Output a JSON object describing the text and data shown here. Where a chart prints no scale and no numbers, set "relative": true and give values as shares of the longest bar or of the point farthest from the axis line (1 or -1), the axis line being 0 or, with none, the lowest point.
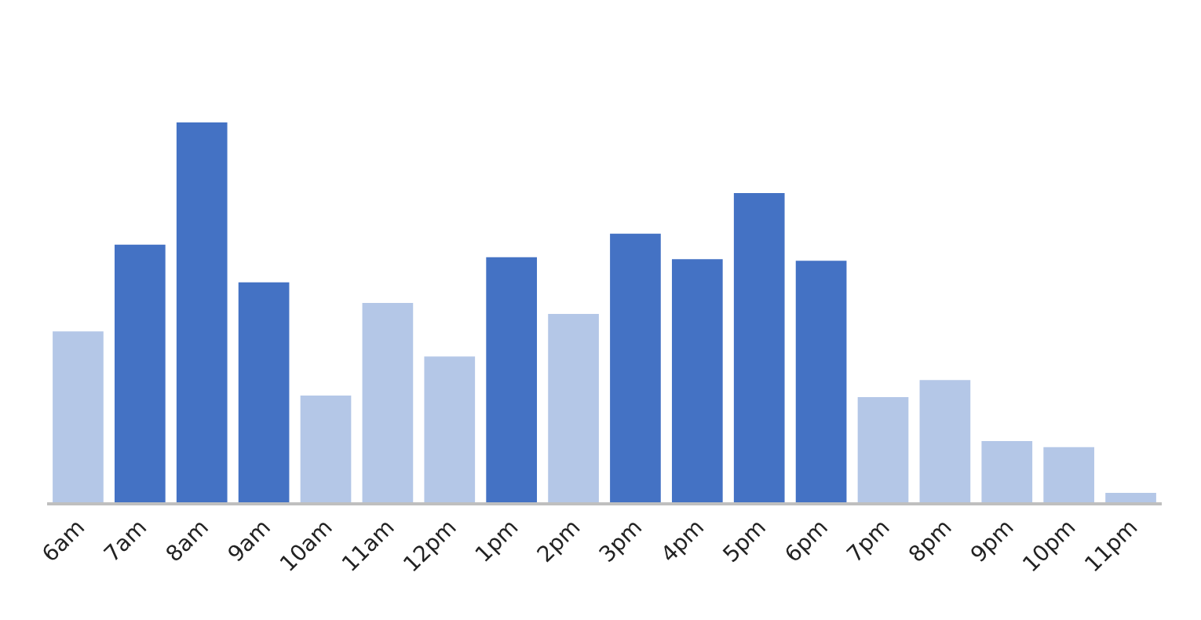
{
  "chart_data": {
    "type": "bar",
    "relative": true,
    "categories": [
      "6am",
      "7am",
      "8am",
      "9am",
      "10am",
      "11am",
      "12pm",
      "1pm",
      "2pm",
      "3pm",
      "4pm",
      "5pm",
      "6pm",
      "7pm",
      "8pm",
      "9pm",
      "10pm",
      "11pm"
    ],
    "values": [
      0.45,
      0.678,
      1,
      0.579,
      0.281,
      0.525,
      0.384,
      0.645,
      0.496,
      0.707,
      0.64,
      0.814,
      0.636,
      0.277,
      0.322,
      0.161,
      0.145,
      0.025
    ],
    "colors": [
      "#b4c7e7",
      "#4472c4",
      "#4472c4",
      "#4472c4",
      "#b4c7e7",
      "#b4c7e7",
      "#b4c7e7",
      "#4472c4",
      "#b4c7e7",
      "#4472c4",
      "#4472c4",
      "#4472c4",
      "#4472c4",
      "#b4c7e7",
      "#b4c7e7",
      "#b4c7e7",
      "#b4c7e7",
      "#b4c7e7"
    ],
    "legend": false
  }
}
